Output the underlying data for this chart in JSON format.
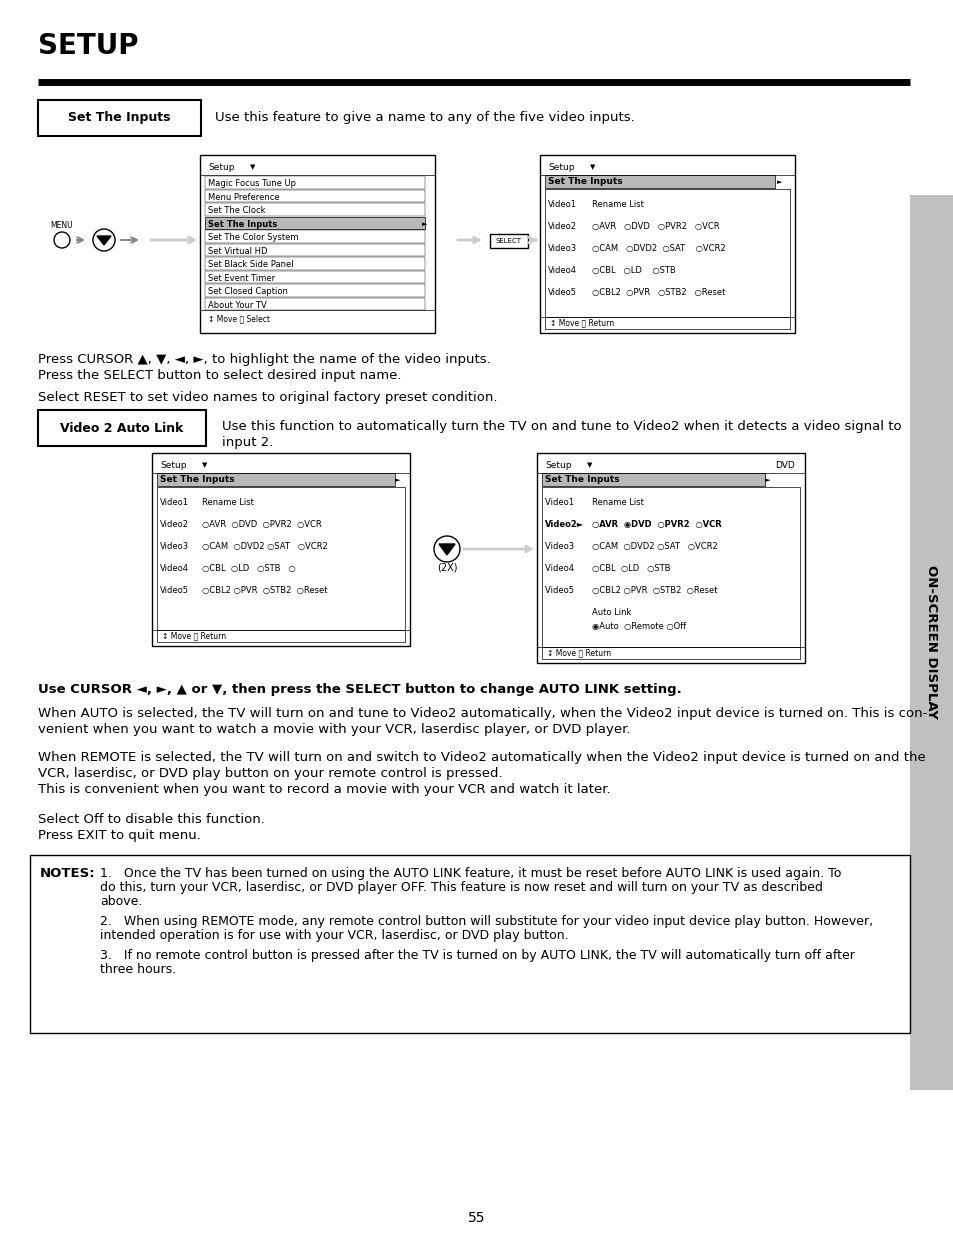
{
  "page_bg": "#ffffff",
  "title": "SETUP",
  "page_number": "55",
  "sidebar_text": "ON-SCREEN DISPLAY",
  "sidebar_bg": "#c0c0c0",
  "section1_label": "Set The Inputs",
  "section1_desc": "Use this feature to give a name to any of the five video inputs.",
  "section1_para1a": "Press CURSOR ▲, ▼, ◄, ►, to highlight the name of the video inputs.",
  "section1_para1b": "Press the SELECT button to select desired input name.",
  "section1_para2": "Select RESET to set video names to original factory preset condition.",
  "section2_label": "Video 2 Auto Link",
  "section2_desc1": "Use this function to automatically turn the TV on and tune to Video2 when it detects a video signal to",
  "section2_desc2": "input 2.",
  "section2_para1": "Use CURSOR ◄, ►, ▲ or ▼, then press the SELECT button to change AUTO LINK setting.",
  "section2_para2a": "When AUTO is selected, the TV will turn on and tune to Video2 automatically, when the Video2 input device is turned on. This is con-",
  "section2_para2b": "venient when you want to watch a movie with your VCR, laserdisc player, or DVD player.",
  "section2_para3a": "When REMOTE is selected, the TV will turn on and switch to Video2 automatically when the Video2 input device is turned on and the",
  "section2_para3b": "VCR, laserdisc, or DVD play button on your remote control is pressed.",
  "section2_para3c": "This is convenient when you want to record a movie with your VCR and watch it later.",
  "section2_para4a": "Select Off to disable this function.",
  "section2_para4b": "Press EXIT to quit menu.",
  "notes_title": "NOTES:",
  "note1a": "1.   Once the TV has been turned on using the AUTO LINK feature, it must be reset before AUTO LINK is used again. To",
  "note1b": "do this, turn your VCR, laserdisc, or DVD player OFF. This feature is now reset and will turn on your TV as described",
  "note1c": "above.",
  "note2a": "2.   When using REMOTE mode, any remote control button will substitute for your video input device play button. However,",
  "note2b": "intended operation is for use with your VCR, laserdisc, or DVD play button.",
  "note3a": "3.   If no remote control button is pressed after the TV is turned on by AUTO LINK, the TV will automatically turn off after",
  "note3b": "three hours."
}
